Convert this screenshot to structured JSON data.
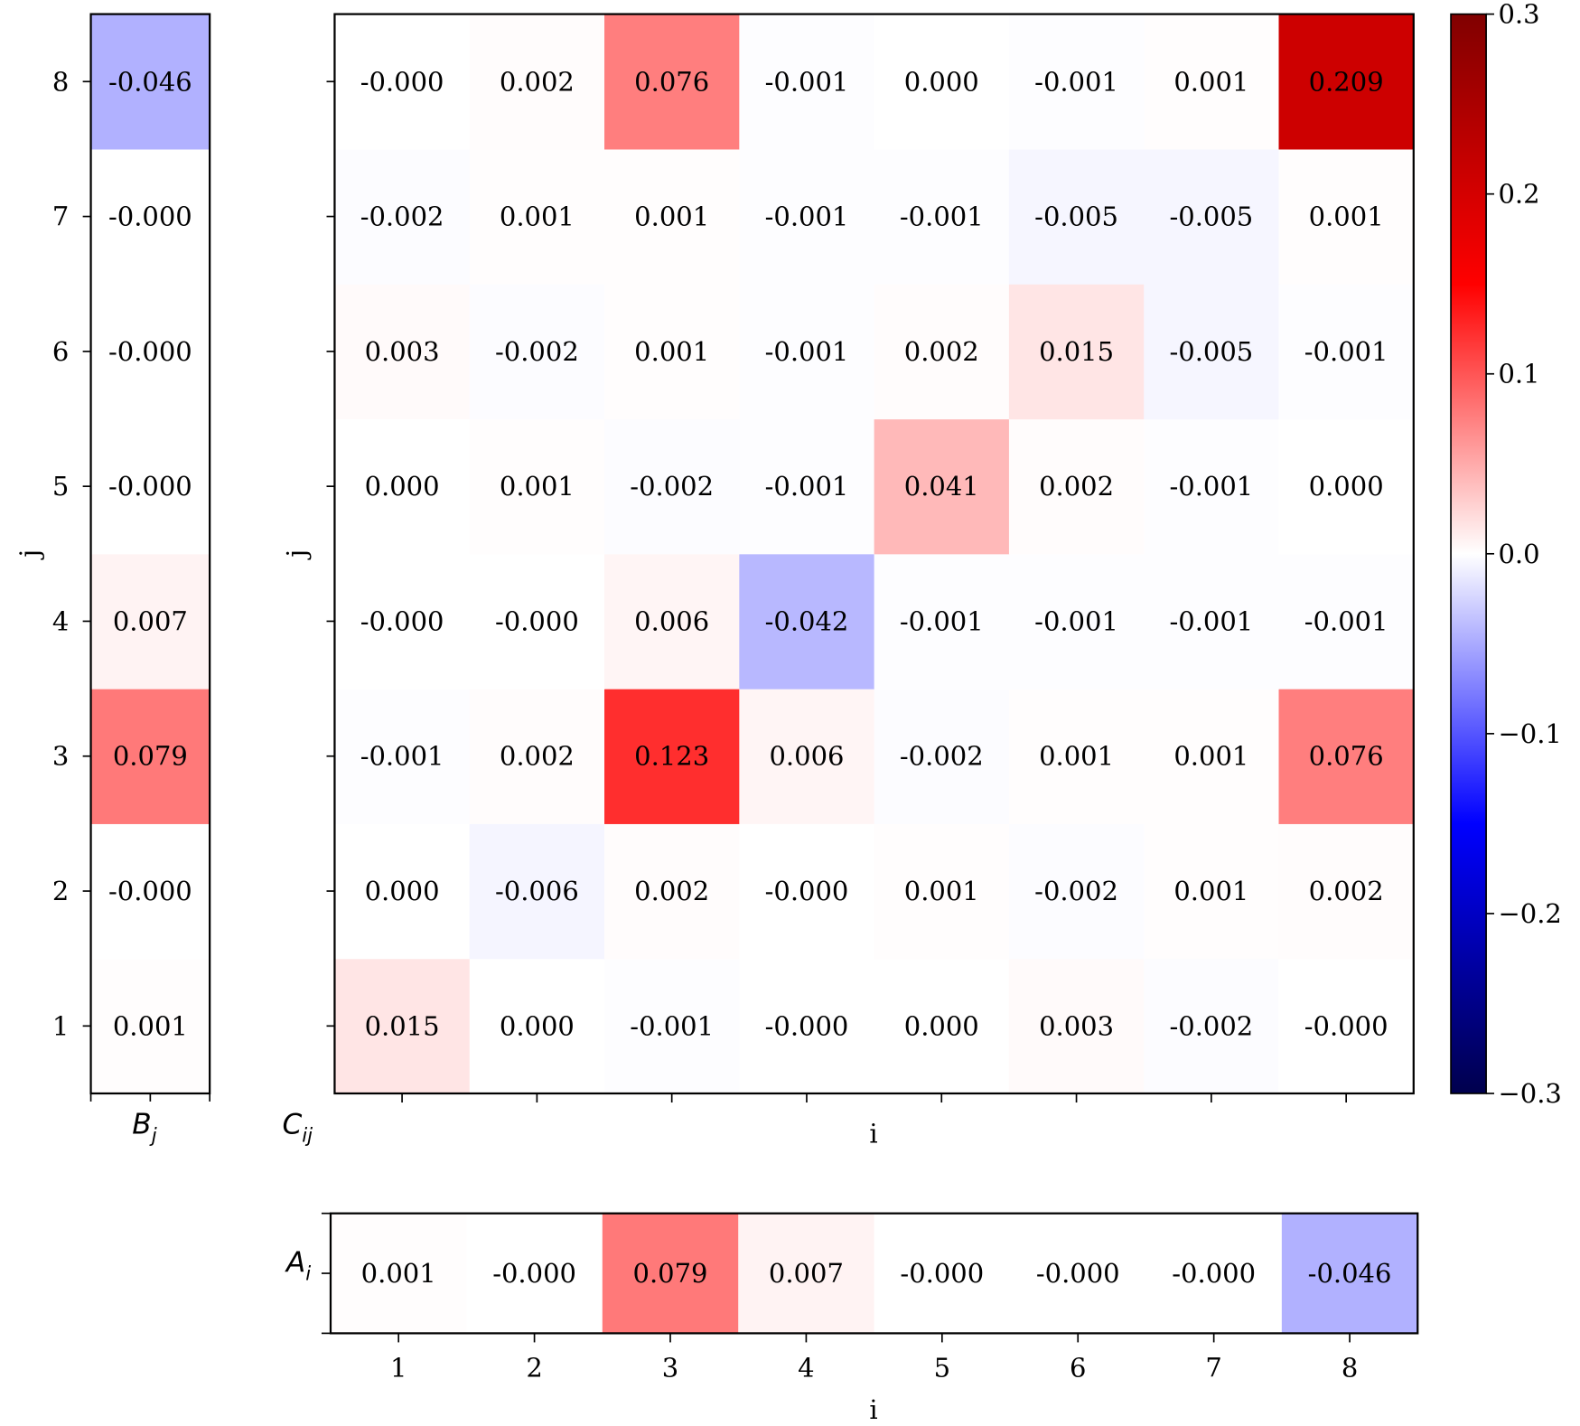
{
  "chart_data": [
    {
      "type": "heatmap",
      "panel": "B",
      "label": "B",
      "label_sub": "j",
      "ylabel": "j",
      "y_ticks": [
        "1",
        "2",
        "3",
        "4",
        "5",
        "6",
        "7",
        "8"
      ],
      "values": [
        0.001,
        -0.0,
        0.079,
        0.007,
        -0.0,
        -0.0,
        -0.0,
        -0.046
      ],
      "value_labels": [
        "0.001",
        "-0.000",
        "0.079",
        "0.007",
        "-0.000",
        "-0.000",
        "-0.000",
        "-0.046"
      ]
    },
    {
      "type": "heatmap",
      "panel": "C",
      "label": "C",
      "label_sub": "ij",
      "xlabel": "i",
      "ylabel": "j",
      "rows_j_from_1": [
        [
          "0.015",
          "0.000",
          "-0.001",
          "-0.000",
          "0.000",
          "0.003",
          "-0.002",
          "-0.000"
        ],
        [
          "0.000",
          "-0.006",
          "0.002",
          "-0.000",
          "0.001",
          "-0.002",
          "0.001",
          "0.002"
        ],
        [
          "-0.001",
          "0.002",
          "0.123",
          "0.006",
          "-0.002",
          "0.001",
          "0.001",
          "0.076"
        ],
        [
          "-0.000",
          "-0.000",
          "0.006",
          "-0.042",
          "-0.001",
          "-0.001",
          "-0.001",
          "-0.001"
        ],
        [
          "0.000",
          "0.001",
          "-0.002",
          "-0.001",
          "0.041",
          "0.002",
          "-0.001",
          "0.000"
        ],
        [
          "0.003",
          "-0.002",
          "0.001",
          "-0.001",
          "0.002",
          "0.015",
          "-0.005",
          "-0.001"
        ],
        [
          "-0.002",
          "0.001",
          "0.001",
          "-0.001",
          "-0.001",
          "-0.005",
          "-0.005",
          "0.001"
        ],
        [
          "-0.000",
          "0.002",
          "0.076",
          "-0.001",
          "0.000",
          "-0.001",
          "0.001",
          "0.209"
        ]
      ]
    },
    {
      "type": "heatmap",
      "panel": "A",
      "label": "A",
      "label_sub": "i",
      "xlabel": "i",
      "x_ticks": [
        "1",
        "2",
        "3",
        "4",
        "5",
        "6",
        "7",
        "8"
      ],
      "values": [
        0.001,
        -0.0,
        0.079,
        0.007,
        -0.0,
        -0.0,
        -0.0,
        -0.046
      ],
      "value_labels": [
        "0.001",
        "-0.000",
        "0.079",
        "0.007",
        "-0.000",
        "-0.000",
        "-0.000",
        "-0.046"
      ]
    }
  ],
  "colorbar": {
    "colormap": "seismic",
    "vmin": -0.3,
    "vmax": 0.3,
    "ticks": [
      "0.3",
      "0.2",
      "0.1",
      "0.0",
      "−0.1",
      "−0.2",
      "−0.3"
    ],
    "tick_values": [
      0.3,
      0.2,
      0.1,
      0.0,
      -0.1,
      -0.2,
      -0.3
    ]
  }
}
